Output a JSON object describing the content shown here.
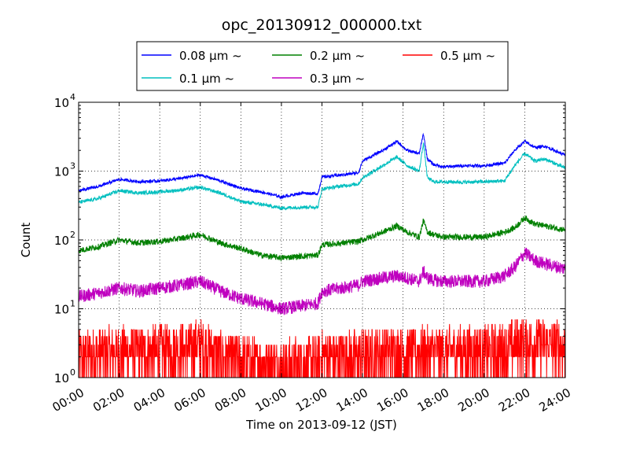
{
  "chart_data": {
    "type": "line",
    "title": "opc_20130912_000000.txt",
    "xlabel": "Time on 2013-09-12 (JST)",
    "ylabel": "Count",
    "y_scale": "log",
    "x_range": [
      "00:00",
      "24:00"
    ],
    "ylim": [
      1,
      10000
    ],
    "x_ticks": [
      "00:00",
      "02:00",
      "04:00",
      "06:00",
      "08:00",
      "10:00",
      "12:00",
      "14:00",
      "16:00",
      "18:00",
      "20:00",
      "22:00",
      "24:00"
    ],
    "y_ticks": [
      {
        "base": "10",
        "exp": "0"
      },
      {
        "base": "10",
        "exp": "1"
      },
      {
        "base": "10",
        "exp": "2"
      },
      {
        "base": "10",
        "exp": "3"
      },
      {
        "base": "10",
        "exp": "4"
      }
    ],
    "grid": true,
    "legend_position": "top-center, above axes",
    "x_hours": [
      0,
      1,
      2,
      3,
      4,
      5,
      6,
      7,
      8,
      9,
      10,
      11,
      11.8,
      12,
      13,
      13.8,
      14,
      15,
      15.7,
      16.2,
      16.8,
      17,
      17.2,
      17.5,
      18,
      19,
      20,
      21,
      21.5,
      22,
      22.5,
      23,
      24
    ],
    "series": [
      {
        "name": "0.08 μm ~",
        "color": "#0000ff",
        "values": [
          520,
          600,
          760,
          700,
          720,
          780,
          880,
          720,
          560,
          500,
          420,
          480,
          470,
          820,
          880,
          950,
          1400,
          2000,
          2700,
          2000,
          1800,
          3500,
          1500,
          1250,
          1150,
          1200,
          1200,
          1300,
          2000,
          2700,
          2200,
          2300,
          1700
        ],
        "noise": 0.05
      },
      {
        "name": "0.1 μm ~",
        "color": "#00bfbf",
        "values": [
          350,
          400,
          520,
          480,
          500,
          530,
          580,
          480,
          360,
          330,
          290,
          300,
          300,
          550,
          610,
          650,
          800,
          1200,
          1600,
          1200,
          1000,
          2600,
          800,
          700,
          700,
          690,
          700,
          720,
          1200,
          1800,
          1400,
          1500,
          1100
        ],
        "noise": 0.06
      },
      {
        "name": "0.2 μm ~",
        "color": "#008000",
        "values": [
          70,
          80,
          100,
          90,
          95,
          105,
          120,
          90,
          75,
          60,
          55,
          58,
          60,
          85,
          90,
          95,
          100,
          130,
          160,
          130,
          110,
          190,
          130,
          120,
          110,
          110,
          110,
          130,
          150,
          210,
          170,
          160,
          140
        ],
        "noise": 0.1
      },
      {
        "name": "0.3 μm ~",
        "color": "#bf00bf",
        "values": [
          15,
          17,
          20,
          18,
          20,
          22,
          25,
          18,
          14,
          12,
          10,
          11,
          12,
          18,
          20,
          22,
          25,
          28,
          30,
          28,
          25,
          35,
          28,
          26,
          25,
          25,
          25,
          30,
          40,
          65,
          50,
          45,
          38
        ],
        "noise": 0.22
      },
      {
        "name": "0.5 μm ~",
        "color": "#ff0000",
        "values": [
          2,
          2.2,
          2.4,
          2.3,
          2.5,
          2.6,
          3,
          2,
          1.7,
          1.6,
          1.5,
          1.6,
          1.7,
          2,
          2,
          2.1,
          2.1,
          2.3,
          2.4,
          2.3,
          2.2,
          2.4,
          2.3,
          2.3,
          2.3,
          2.4,
          2.4,
          2.6,
          3,
          3.2,
          3,
          3,
          2.8
        ],
        "noise": 0.55
      }
    ]
  }
}
